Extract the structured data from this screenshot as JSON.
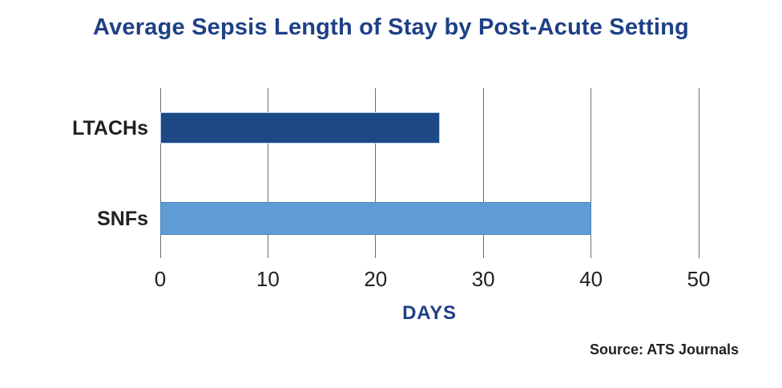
{
  "chart_data": {
    "type": "bar",
    "orientation": "horizontal",
    "title": "Average Sepsis Length of Stay by Post-Acute Setting",
    "categories": [
      "LTACHs",
      "SNFs"
    ],
    "values": [
      26,
      40
    ],
    "bar_colors": [
      "#1d4a87",
      "#5f9cd5"
    ],
    "bar_border_colors": [
      "#b9cfec",
      "#4d87bd"
    ],
    "xlabel": "DAYS",
    "ylabel": "",
    "xlim": [
      0,
      50
    ],
    "x_ticks": [
      0,
      10,
      20,
      30,
      40,
      50
    ],
    "grid": true,
    "gridline_color": "#6f6f6f",
    "legend": "none"
  },
  "source": "Source: ATS Journals",
  "colors": {
    "title_text": "#1e4086",
    "body_text": "#231f20",
    "background": "#ffffff"
  }
}
